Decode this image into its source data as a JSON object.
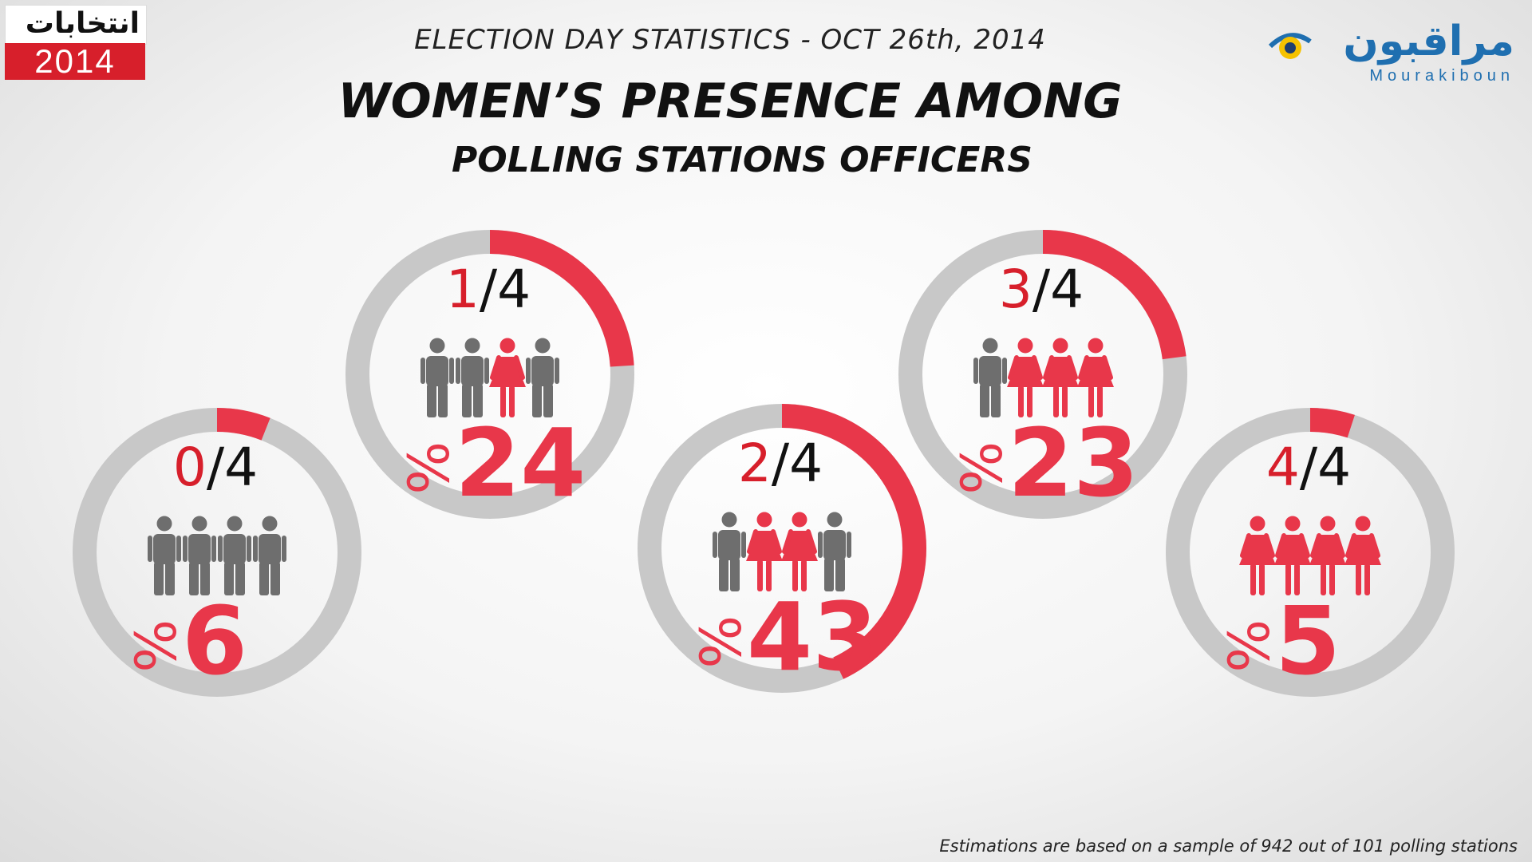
{
  "header": {
    "logo_left_arabic": "انتخابات",
    "logo_left_year": "2014",
    "logo_right_arabic": "مراقبون",
    "logo_right_latin": "Mourakiboun",
    "subtitle": "ELECTION DAY STATISTICS - OCT 26th, 2014",
    "title_line1": "WOMEN’S PRESENCE AMONG",
    "title_line2": "POLLING STATIONS OFFICERS"
  },
  "footnote": "Estimations are based on a sample of 942 out of 101 polling stations",
  "colors": {
    "accent": "#e8374a",
    "accent_text": "#d71f2b",
    "ring_gray": "#c8c8c8",
    "man": "#6e6e6e",
    "woman": "#e8374a"
  },
  "chart_data": {
    "type": "pie",
    "categories": [
      "0/4",
      "1/4",
      "2/4",
      "3/4",
      "4/4"
    ],
    "values": [
      6,
      24,
      43,
      23,
      5
    ],
    "items": [
      {
        "women": "0",
        "total": "/4",
        "percent": "6",
        "percent_sign": "%",
        "figures": [
          "man",
          "man",
          "man",
          "man"
        ]
      },
      {
        "women": "1",
        "total": "/4",
        "percent": "24",
        "percent_sign": "%",
        "figures": [
          "man",
          "man",
          "woman",
          "man"
        ]
      },
      {
        "women": "2",
        "total": "/4",
        "percent": "43",
        "percent_sign": "%",
        "figures": [
          "man",
          "woman",
          "woman",
          "man"
        ]
      },
      {
        "women": "3",
        "total": "/4",
        "percent": "23",
        "percent_sign": "%",
        "figures": [
          "man",
          "woman",
          "woman",
          "woman"
        ]
      },
      {
        "women": "4",
        "total": "/4",
        "percent": "5",
        "percent_sign": "%",
        "figures": [
          "woman",
          "woman",
          "woman",
          "woman"
        ]
      }
    ]
  }
}
